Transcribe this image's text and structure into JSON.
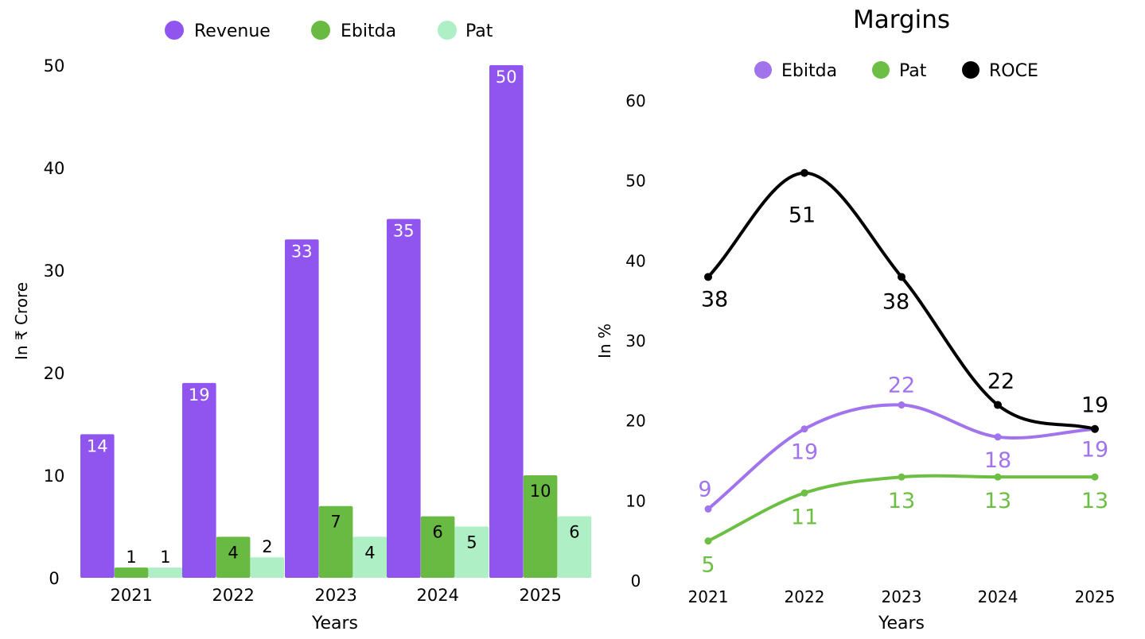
{
  "colors": {
    "revenue": "#8F55EE",
    "ebitda_bar": "#68BA42",
    "pat_bar": "#AEEFC6",
    "ebitda_line": "#A173EC",
    "pat_line": "#6CBF43",
    "roce_line": "#000000"
  },
  "chart_data": [
    {
      "type": "bar",
      "title": "",
      "xlabel": "Years",
      "ylabel": "In ₹ Crore",
      "categories": [
        "2021",
        "2022",
        "2023",
        "2024",
        "2025"
      ],
      "ylim": [
        0,
        50
      ],
      "yticks": [
        0,
        10,
        20,
        30,
        40,
        50
      ],
      "legend": "top-center",
      "series": [
        {
          "name": "Revenue",
          "values": [
            14,
            19,
            33,
            35,
            50
          ]
        },
        {
          "name": "Ebitda",
          "values": [
            1,
            4,
            7,
            6,
            10
          ]
        },
        {
          "name": "Pat",
          "values": [
            1,
            2,
            4,
            5,
            6
          ]
        }
      ]
    },
    {
      "type": "line",
      "title": "Margins",
      "xlabel": "Years",
      "ylabel": "In %",
      "categories": [
        "2021",
        "2022",
        "2023",
        "2024",
        "2025"
      ],
      "ylim": [
        0,
        60
      ],
      "yticks": [
        0,
        10,
        20,
        30,
        40,
        50,
        60
      ],
      "legend": "top-center",
      "series": [
        {
          "name": "Ebitda",
          "values": [
            9,
            19,
            22,
            18,
            19
          ]
        },
        {
          "name": "Pat",
          "values": [
            5,
            11,
            13,
            13,
            13
          ]
        },
        {
          "name": "ROCE",
          "values": [
            38,
            51,
            38,
            22,
            19
          ]
        }
      ]
    }
  ]
}
